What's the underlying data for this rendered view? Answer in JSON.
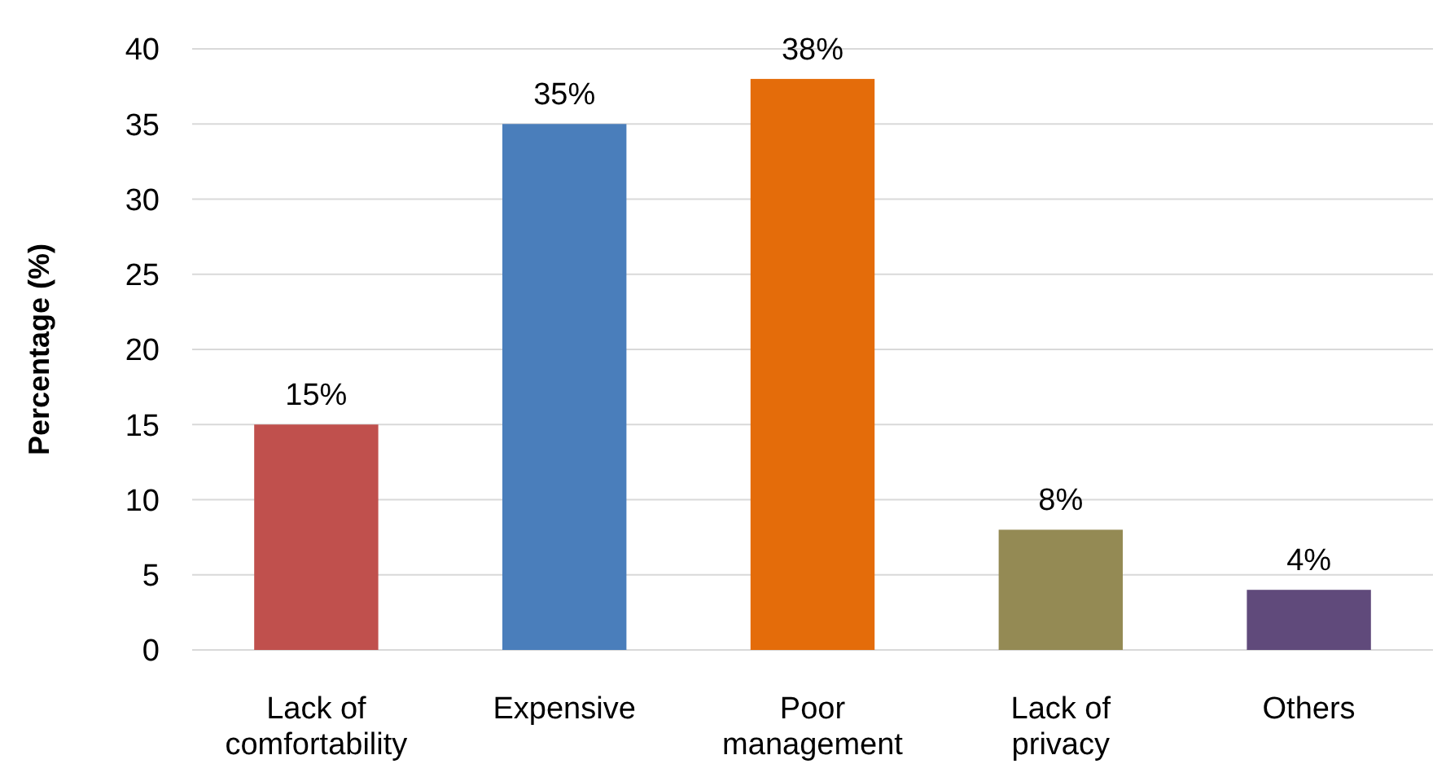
{
  "chart_data": {
    "type": "bar",
    "ylabel": "Percentage (%)",
    "categories": [
      "Lack of comfortability",
      "Expensive",
      "Poor management",
      "Lack of privacy",
      "Others"
    ],
    "values": [
      15,
      35,
      38,
      8,
      4
    ],
    "colors": [
      "#c0504d",
      "#4a7ebb",
      "#e46c0a",
      "#948a54",
      "#604a7b"
    ],
    "value_labels": [
      "15%",
      "35%",
      "38%",
      "8%",
      "4%"
    ],
    "ylim": [
      0,
      40
    ],
    "yticks": [
      0,
      5,
      10,
      15,
      20,
      25,
      30,
      35,
      40
    ],
    "grid": "y"
  }
}
